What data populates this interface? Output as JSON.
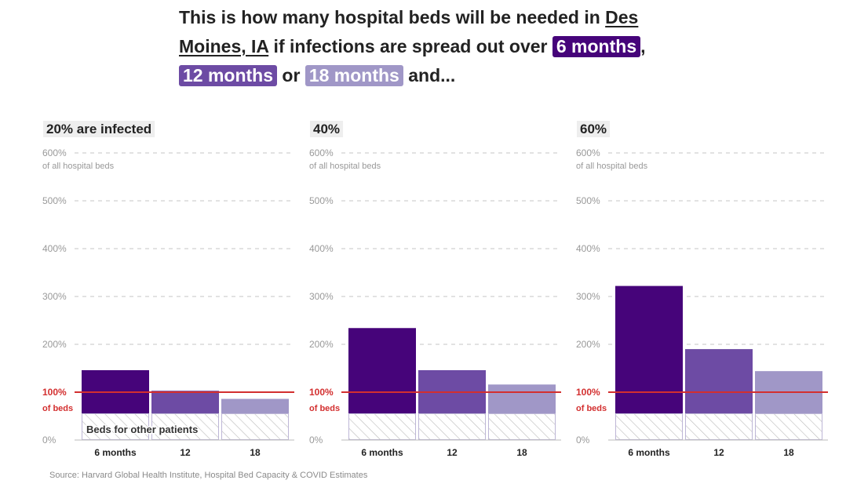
{
  "headline": {
    "pre": "This is how many hospital beds will be needed in ",
    "location": "Des Moines, IA",
    "mid": " if infections are spread out over ",
    "pill1": "6 months",
    "comma": ",",
    "pill2": "12 months",
    "or": " or ",
    "pill3": "18 months",
    "post": " and..."
  },
  "colors": {
    "six_months": "#46047a",
    "twelve_months": "#6d4ba4",
    "eighteen_months": "#a097c7",
    "capacity_line": "#d32f2f",
    "hatch": "#bbbbbb"
  },
  "y_axis": {
    "ticks": [
      "0%",
      "100%",
      "200%",
      "300%",
      "400%",
      "500%",
      "600%"
    ],
    "top_note": "of all hospital beds",
    "capacity_note": "of beds"
  },
  "other_patients_label": "Beds for other patients",
  "source": "Source: Harvard Global Health Institute, Hospital Bed Capacity & COVID Estimates",
  "chart_data": [
    {
      "type": "bar",
      "title": "20% are infected",
      "categories": [
        "6 months",
        "12",
        "18"
      ],
      "values": [
        146,
        103,
        86
      ],
      "other_patients_baseline": 55,
      "capacity_line": 100,
      "ylim": [
        0,
        600
      ]
    },
    {
      "type": "bar",
      "title": "40%",
      "categories": [
        "6 months",
        "12",
        "18"
      ],
      "values": [
        234,
        146,
        116
      ],
      "other_patients_baseline": 55,
      "capacity_line": 100,
      "ylim": [
        0,
        600
      ]
    },
    {
      "type": "bar",
      "title": "60%",
      "categories": [
        "6 months",
        "12",
        "18"
      ],
      "values": [
        322,
        190,
        144
      ],
      "other_patients_baseline": 55,
      "capacity_line": 100,
      "ylim": [
        0,
        600
      ]
    }
  ]
}
